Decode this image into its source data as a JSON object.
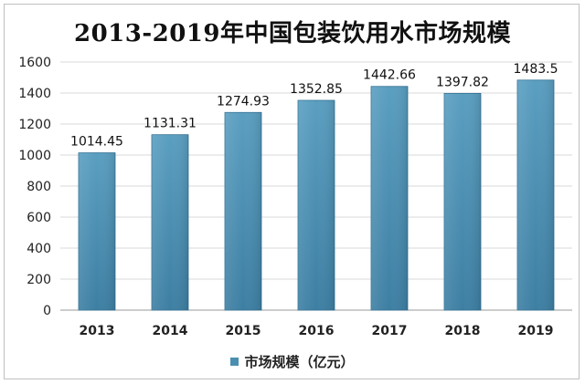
{
  "chart_data": {
    "type": "bar",
    "title": "2013-2019年中国包装饮用水市场规模",
    "categories": [
      "2013",
      "2014",
      "2015",
      "2016",
      "2017",
      "2018",
      "2019"
    ],
    "series": [
      {
        "name": "市场规模（亿元）",
        "values": [
          1014.45,
          1131.31,
          1274.93,
          1352.85,
          1442.66,
          1397.82,
          1483.5
        ]
      }
    ],
    "data_labels": [
      "1014.45",
      "1131.31",
      "1274.93",
      "1352.85",
      "1442.66",
      "1397.82",
      "1483.5"
    ],
    "ylim": [
      0,
      1600
    ],
    "yticks": [
      0,
      200,
      400,
      600,
      800,
      1000,
      1200,
      1400,
      1600
    ],
    "grid": true,
    "legend_position": "bottom",
    "bar_color": "#4a8fb0"
  }
}
